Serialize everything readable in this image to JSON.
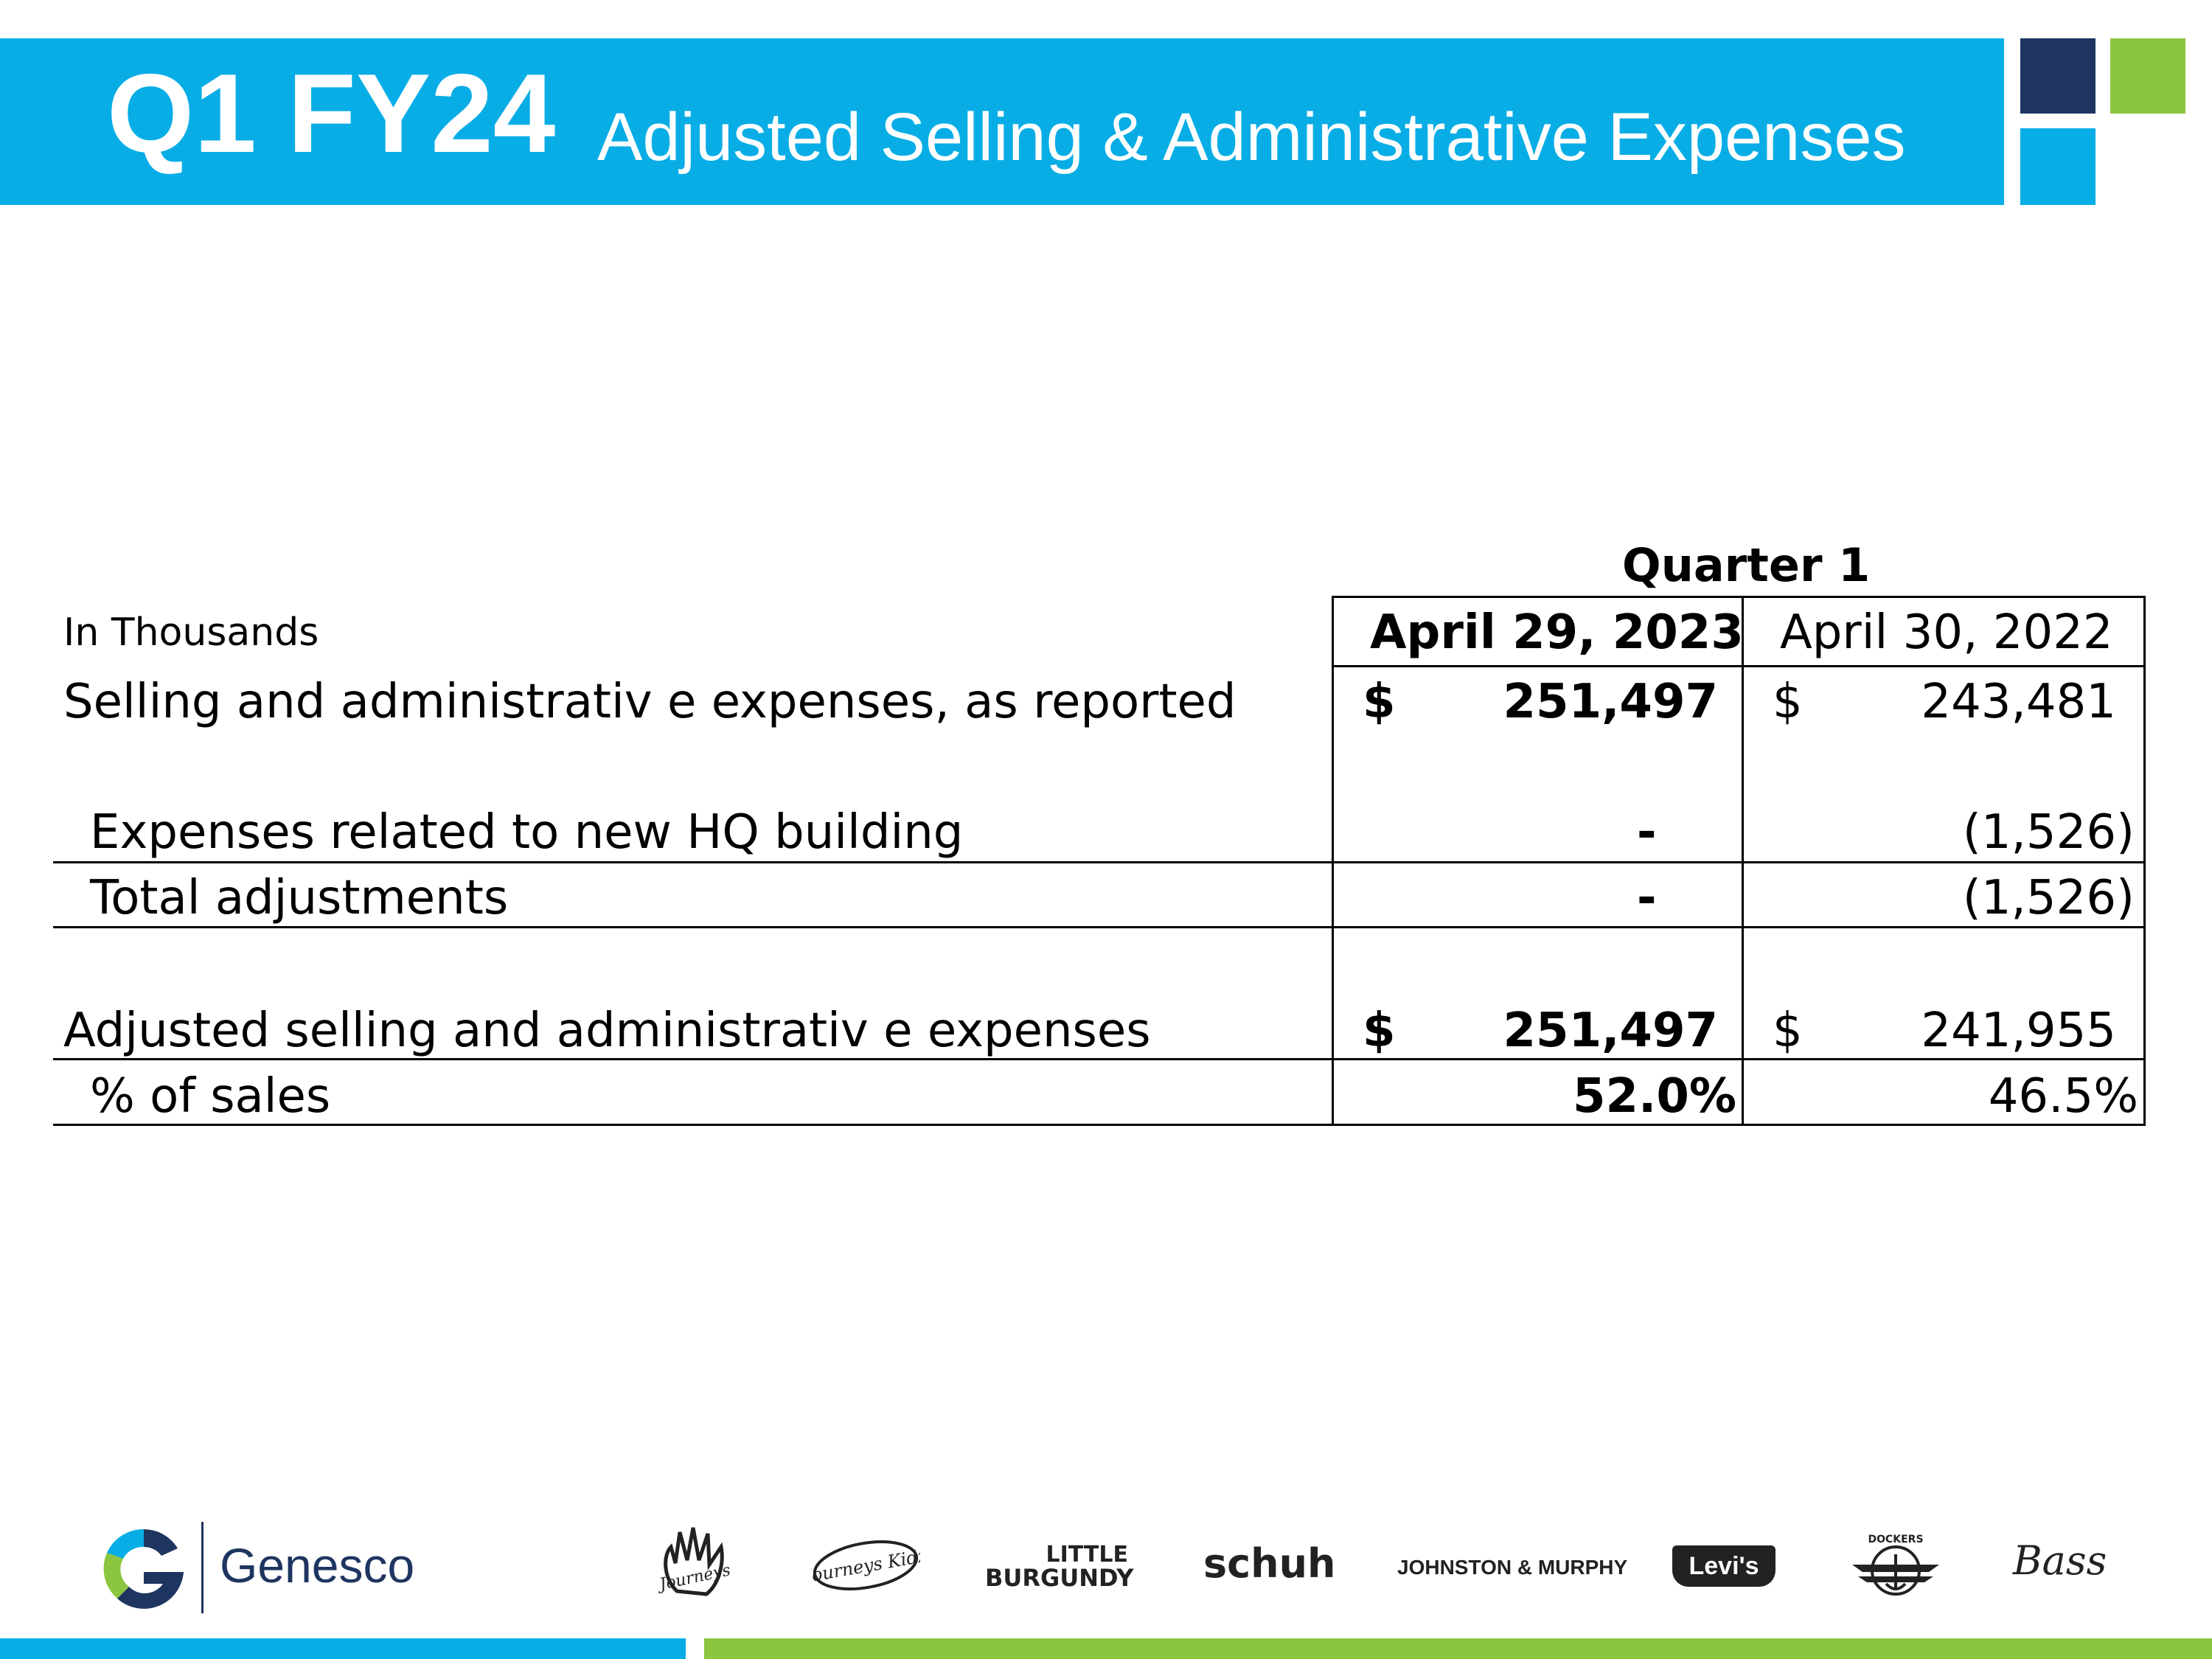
{
  "header": {
    "title": "Q1 FY24",
    "subtitle": "Adjusted Selling & Administrative Expenses"
  },
  "table": {
    "period_header": "Quarter 1",
    "unit_label": "In Thousands",
    "columns": [
      "April 29, 2023",
      "April 30, 2022"
    ],
    "rows": [
      {
        "label": "Selling and administrativ e expenses, as reported",
        "currency": [
          "$",
          "$"
        ],
        "values": [
          "251,497",
          "243,481"
        ]
      },
      {
        "label": "Expenses related to new HQ building",
        "values": [
          "-",
          "(1,526)"
        ]
      },
      {
        "label": "Total adjustments",
        "values": [
          "-",
          "(1,526)"
        ]
      },
      {
        "label": "Adjusted selling and administrativ e expenses",
        "currency": [
          "$",
          "$"
        ],
        "values": [
          "251,497",
          "241,955"
        ]
      },
      {
        "label": "% of sales",
        "values": [
          "52.0%",
          "46.5%"
        ]
      }
    ]
  },
  "footer": {
    "company": "Genesco",
    "brands": [
      "Journeys",
      "Journeys Kidz",
      "LITTLE",
      "BURGUNDY",
      "schuh",
      "JOHNSTON & MURPHY",
      "Levi's",
      "DOCKERS",
      "Bass"
    ]
  },
  "colors": {
    "accent_blue": "#08ade6",
    "accent_green": "#8cc540",
    "navy": "#1e3560"
  }
}
